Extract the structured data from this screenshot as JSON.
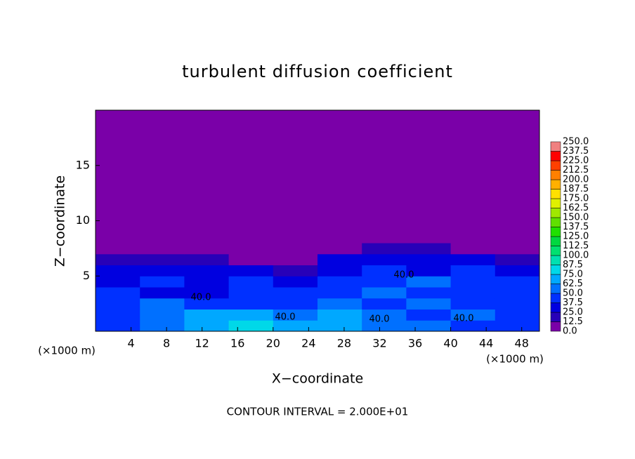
{
  "chart_data": {
    "type": "contour",
    "title": "turbulent diffusion coefficient",
    "x_label": "X−coordinate",
    "y_label": "Z−coordinate",
    "x_unit": "(×1000 m)",
    "y_unit": "(×1000 m)",
    "footer": "CONTOUR INTERVAL = 2.000E+01",
    "contour_labels": [
      "40.0",
      "40.0",
      "40.0",
      "40.0",
      "40.0"
    ],
    "xlim": [
      0,
      50
    ],
    "ylim": [
      0,
      20
    ],
    "xticks": [
      4,
      8,
      12,
      16,
      20,
      24,
      28,
      32,
      36,
      40,
      44,
      48
    ],
    "yticks": [
      5,
      10,
      15
    ],
    "xbins": [
      0,
      5,
      10,
      15,
      20,
      25,
      30,
      35,
      40,
      45,
      50
    ],
    "zbins": [
      0,
      1,
      2,
      3,
      4,
      5,
      6,
      7,
      8,
      20
    ],
    "z": [
      [
        45,
        55,
        70,
        75,
        70,
        70,
        60,
        50,
        45,
        40
      ],
      [
        40,
        60,
        70,
        65,
        55,
        70,
        50,
        45,
        50,
        45
      ],
      [
        45,
        50,
        45,
        40,
        45,
        55,
        45,
        50,
        40,
        45
      ],
      [
        40,
        35,
        35,
        40,
        40,
        45,
        55,
        45,
        40,
        40
      ],
      [
        35,
        40,
        30,
        45,
        30,
        40,
        45,
        50,
        40,
        45
      ],
      [
        30,
        30,
        25,
        30,
        20,
        35,
        40,
        35,
        40,
        35
      ],
      [
        20,
        20,
        15,
        10,
        5,
        30,
        30,
        30,
        30,
        20
      ],
      [
        5,
        5,
        5,
        0,
        0,
        10,
        20,
        15,
        10,
        0
      ],
      [
        0,
        0,
        0,
        0,
        0,
        0,
        0,
        0,
        0,
        0
      ]
    ],
    "levels": [
      {
        "value": 0,
        "label": "0.0"
      },
      {
        "value": 12.5,
        "label": "12.5"
      },
      {
        "value": 25,
        "label": "25.0"
      },
      {
        "value": 37.5,
        "label": "37.5"
      },
      {
        "value": 50,
        "label": "50.0"
      },
      {
        "value": 62.5,
        "label": "62.5"
      },
      {
        "value": 75,
        "label": "75.0"
      },
      {
        "value": 87.5,
        "label": "87.5"
      },
      {
        "value": 100,
        "label": "100.0"
      },
      {
        "value": 112.5,
        "label": "112.5"
      },
      {
        "value": 125,
        "label": "125.0"
      },
      {
        "value": 137.5,
        "label": "137.5"
      },
      {
        "value": 150,
        "label": "150.0"
      },
      {
        "value": 162.5,
        "label": "162.5"
      },
      {
        "value": 175,
        "label": "175.0"
      },
      {
        "value": 187.5,
        "label": "187.5"
      },
      {
        "value": 200,
        "label": "200.0"
      },
      {
        "value": 212.5,
        "label": "212.5"
      },
      {
        "value": 225,
        "label": "225.0"
      },
      {
        "value": 237.5,
        "label": "237.5"
      },
      {
        "value": 250,
        "label": "250.0"
      }
    ],
    "colors": [
      "#7a00a8",
      "#2800b8",
      "#0000e0",
      "#0030ff",
      "#0070ff",
      "#00a8ff",
      "#00d8e8",
      "#00e0b0",
      "#00e070",
      "#00d840",
      "#20e000",
      "#60e000",
      "#a0e800",
      "#e0f000",
      "#ffe000",
      "#ffb000",
      "#ff8000",
      "#ff4000",
      "#ff0000",
      "#f08080"
    ]
  }
}
